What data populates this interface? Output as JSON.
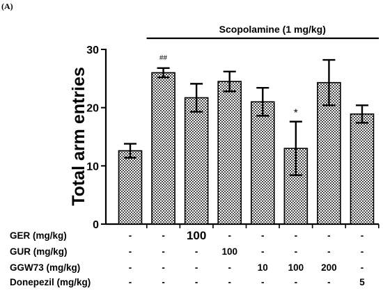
{
  "panel_label": "(A)",
  "chart_data": {
    "type": "bar",
    "ylabel": "Total arm entries",
    "xlabel": "",
    "ylim": [
      0,
      30
    ],
    "yticks": [
      0,
      10,
      20,
      30
    ],
    "grid": false,
    "bar_fill": "crosshatch-pattern",
    "bar_fill_colors": [
      "#4a4a4a",
      "#ffffff"
    ],
    "values": [
      12.6,
      26.0,
      21.7,
      24.5,
      21.0,
      13.0,
      24.3,
      18.9
    ],
    "errors": [
      1.2,
      0.8,
      2.4,
      1.7,
      2.4,
      4.6,
      3.9,
      1.5
    ],
    "significance": [
      "",
      "##",
      "",
      "",
      "",
      "*",
      "",
      ""
    ],
    "bracket": {
      "label": "Scopolamine (1 mg/kg)",
      "from_bar": 1,
      "to_bar": 7
    },
    "treatment_table": {
      "rows": [
        {
          "label": "GER (mg/kg)",
          "cells": [
            "-",
            "-",
            "100",
            "-",
            "-",
            "-",
            "-",
            "-"
          ]
        },
        {
          "label": "GUR (mg/kg)",
          "cells": [
            "-",
            "-",
            "-",
            "100",
            "-",
            "-",
            "-",
            "-"
          ]
        },
        {
          "label": "GGW73 (mg/kg)",
          "cells": [
            "-",
            "-",
            "-",
            "-",
            "10",
            "100",
            "200",
            "-"
          ]
        },
        {
          "label": "Donepezil (mg/kg)",
          "cells": [
            "-",
            "-",
            "-",
            "-",
            "-",
            "-",
            "-",
            "5"
          ]
        }
      ]
    }
  }
}
